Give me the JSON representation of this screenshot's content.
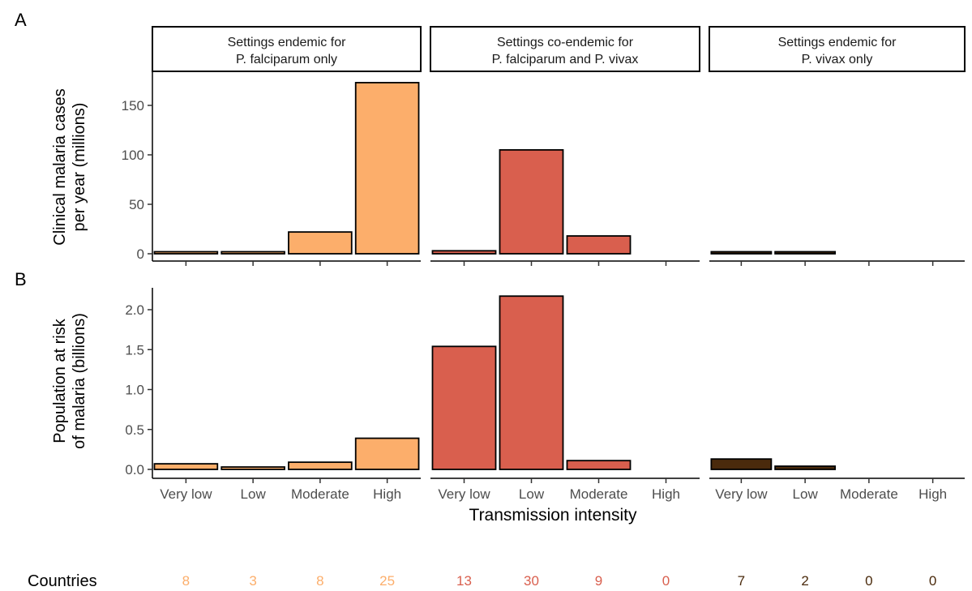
{
  "panels": {
    "a_label": "A",
    "b_label": "B"
  },
  "facets": [
    {
      "line1": "Settings endemic for",
      "line2": "P. falciparum only"
    },
    {
      "line1": "Settings co-endemic for",
      "line2": "P. falciparum and P. vivax"
    },
    {
      "line1": "Settings endemic for",
      "line2": "P. vivax only"
    }
  ],
  "colors": {
    "falciparum": "#fcae6b",
    "coendemic": "#d95f4e",
    "vivax": "#4a2a0c",
    "outline": "#000000",
    "tick_label": "#4d4d4d"
  },
  "xlabel": "Transmission intensity",
  "countries_label": "Countries",
  "chart_data": [
    {
      "type": "bar",
      "panel": "A",
      "ylabel_line1": "Clinical malaria cases",
      "ylabel_line2": "per year (millions)",
      "ylim": [
        0,
        180
      ],
      "yticks": [
        0,
        50,
        100,
        150
      ],
      "categories": [
        "Very low",
        "Low",
        "Moderate",
        "High"
      ],
      "series": [
        {
          "values": [
            0.5,
            1,
            22,
            173
          ]
        },
        {
          "values": [
            3,
            105,
            18,
            0
          ]
        },
        {
          "values": [
            0.5,
            1.5,
            0,
            0
          ]
        }
      ]
    },
    {
      "type": "bar",
      "panel": "B",
      "ylabel_line1": "Population at risk",
      "ylabel_line2": "of malaria (billions)",
      "ylim": [
        0,
        2.25
      ],
      "yticks": [
        0.0,
        0.5,
        1.0,
        1.5,
        2.0
      ],
      "ytick_labels": [
        "0.0",
        "0.5",
        "1.0",
        "1.5",
        "2.0"
      ],
      "categories": [
        "Very low",
        "Low",
        "Moderate",
        "High"
      ],
      "series": [
        {
          "values": [
            0.07,
            0.03,
            0.09,
            0.39
          ]
        },
        {
          "values": [
            1.54,
            2.17,
            0.11,
            0
          ]
        },
        {
          "values": [
            0.13,
            0.04,
            0,
            0
          ]
        }
      ]
    }
  ],
  "countries": [
    [
      "8",
      "3",
      "8",
      "25"
    ],
    [
      "13",
      "30",
      "9",
      "0"
    ],
    [
      "7",
      "2",
      "0",
      "0"
    ]
  ]
}
